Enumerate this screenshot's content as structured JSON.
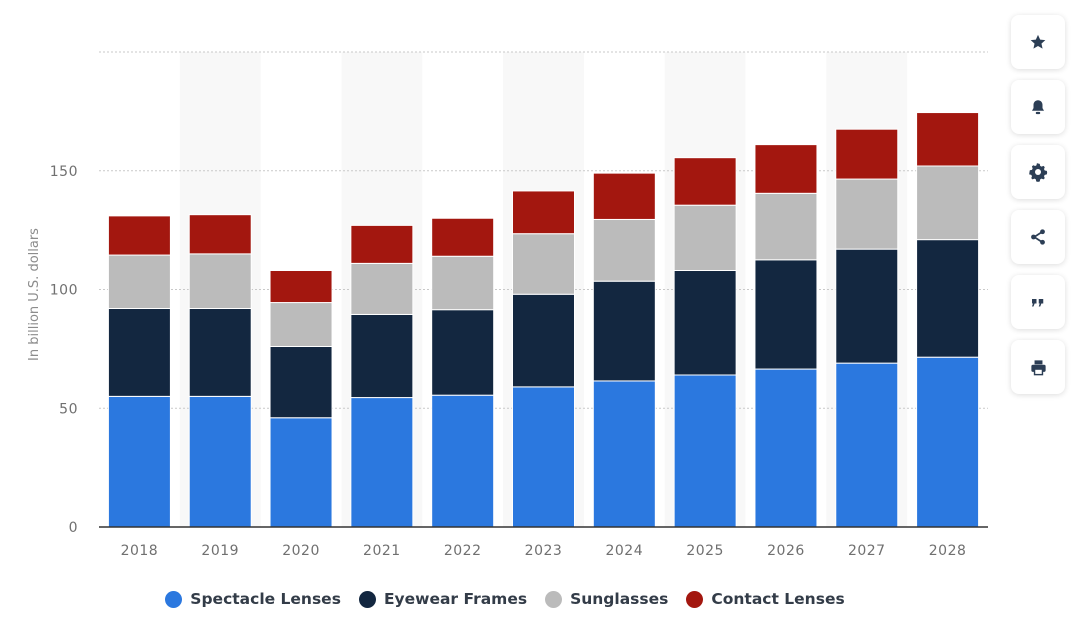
{
  "chart_data": {
    "type": "bar",
    "stacked": true,
    "categories": [
      "2018",
      "2019",
      "2020",
      "2021",
      "2022",
      "2023",
      "2024",
      "2025",
      "2026",
      "2027",
      "2028"
    ],
    "series": [
      {
        "name": "Spectacle Lenses",
        "color": "#2b78df",
        "values": [
          55,
          55,
          46,
          54.5,
          55.5,
          59,
          61.5,
          64,
          66.5,
          69,
          71.5
        ]
      },
      {
        "name": "Eyewear Frames",
        "color": "#132740",
        "values": [
          37,
          37,
          30,
          35,
          36,
          39,
          42,
          44,
          46,
          48,
          49.5
        ]
      },
      {
        "name": "Sunglasses",
        "color": "#bbbbbb",
        "values": [
          22.5,
          23,
          18.5,
          21.5,
          22.5,
          25.5,
          26,
          27.5,
          28,
          29.5,
          31
        ]
      },
      {
        "name": "Contact Lenses",
        "color": "#a3170f",
        "values": [
          16.5,
          16.5,
          13.5,
          16,
          16,
          18,
          19.5,
          20,
          20.5,
          21,
          22.5
        ]
      }
    ],
    "ylabel": "In billion U.S. dollars",
    "xlabel": "",
    "ylim": [
      0,
      200
    ],
    "yticks": [
      0,
      50,
      100,
      150
    ],
    "grid": true,
    "legend_position": "bottom"
  },
  "toolbar": {
    "buttons": [
      {
        "icon": "star-icon"
      },
      {
        "icon": "bell-icon"
      },
      {
        "icon": "gear-icon"
      },
      {
        "icon": "share-icon"
      },
      {
        "icon": "quote-icon"
      },
      {
        "icon": "print-icon"
      }
    ]
  },
  "colors": {
    "toolbar_icon": "#2c3e55",
    "axis_line": "#333333",
    "gridline": "#c9c9c9",
    "band": "#f8f8f8"
  }
}
